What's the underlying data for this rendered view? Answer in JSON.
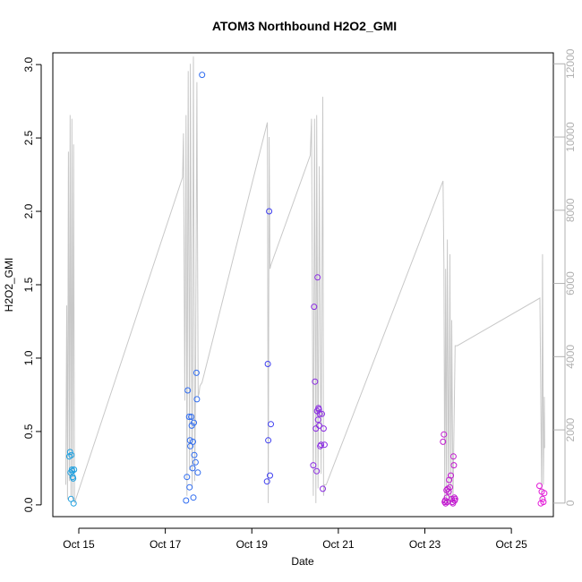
{
  "chart_data": {
    "type": "scatter",
    "title": "ATOM3 Northbound H2O2_GMI",
    "xlabel": "Date",
    "ylabel": "H2O2_GMI",
    "xlim": [
      14.4,
      25.97
    ],
    "ylim": [
      -0.08,
      3.08
    ],
    "y2lim": [
      -370,
      12300
    ],
    "x_ticks": [
      {
        "value": 15,
        "label": "Oct 15"
      },
      {
        "value": 17,
        "label": "Oct 17"
      },
      {
        "value": 19,
        "label": "Oct 19"
      },
      {
        "value": 21,
        "label": "Oct 21"
      },
      {
        "value": 23,
        "label": "Oct 23"
      },
      {
        "value": 25,
        "label": "Oct 25"
      }
    ],
    "y_ticks": [
      "0.0",
      "0.5",
      "1.0",
      "1.5",
      "2.0",
      "2.5",
      "3.0"
    ],
    "y2_ticks": [
      "0",
      "2000",
      "4000",
      "6000",
      "8000",
      "10000",
      "12000"
    ],
    "grid": false,
    "colors": {
      "axis": "#000000",
      "secondary_axis": "#b0b0b0",
      "altitude_line": "#c8c8c8"
    },
    "series": [
      {
        "marker": "open-circle",
        "color": "#1fa0e0",
        "x": [
          14.78,
          14.8,
          14.81,
          14.82,
          14.83,
          14.84,
          14.85,
          14.86,
          14.87,
          14.88,
          14.89
        ],
        "y": [
          0.33,
          0.36,
          0.22,
          0.04,
          0.34,
          0.24,
          0.23,
          0.19,
          0.18,
          0.01,
          0.24
        ]
      },
      {
        "marker": "open-circle",
        "color": "#2f6cf0",
        "x": [
          17.48,
          17.5,
          17.52,
          17.55,
          17.56,
          17.57,
          17.58,
          17.6,
          17.61,
          17.63,
          17.64,
          17.65,
          17.66,
          17.67,
          17.7,
          17.72,
          17.73,
          17.75,
          17.85
        ],
        "y": [
          0.03,
          0.19,
          0.78,
          0.6,
          0.12,
          0.44,
          0.4,
          0.6,
          0.54,
          0.25,
          0.43,
          0.05,
          0.56,
          0.34,
          0.29,
          0.9,
          0.72,
          0.22,
          2.93
        ]
      },
      {
        "marker": "open-circle",
        "color": "#3f3ff0",
        "x": [
          19.35,
          19.37,
          19.38,
          19.4,
          19.42,
          19.44
        ],
        "y": [
          0.16,
          0.96,
          0.44,
          2.0,
          0.2,
          0.55
        ]
      },
      {
        "marker": "open-circle",
        "color": "#8a2be2",
        "x": [
          20.42,
          20.44,
          20.46,
          20.48,
          20.5,
          20.51,
          20.52,
          20.53,
          20.54,
          20.55,
          20.56,
          20.57,
          20.58,
          20.6,
          20.62,
          20.64,
          20.66,
          20.68
        ],
        "y": [
          0.27,
          1.35,
          0.84,
          0.52,
          0.23,
          0.64,
          1.55,
          0.58,
          0.66,
          0.65,
          0.54,
          0.62,
          0.4,
          0.41,
          0.62,
          0.11,
          0.52,
          0.41
        ]
      },
      {
        "marker": "open-circle",
        "color": "#c21ad0",
        "x": [
          23.42,
          23.44,
          23.46,
          23.47,
          23.48,
          23.5,
          23.51,
          23.52,
          23.53,
          23.55,
          23.56,
          23.58,
          23.6,
          23.62,
          23.64,
          23.65,
          23.66,
          23.67,
          23.68,
          23.69,
          23.7
        ],
        "y": [
          0.43,
          0.48,
          0.02,
          0.03,
          0.01,
          0.1,
          0.05,
          0.02,
          0.11,
          0.09,
          0.17,
          0.12,
          0.2,
          0.04,
          0.02,
          0.01,
          0.33,
          0.27,
          0.05,
          0.03,
          0.04
        ]
      },
      {
        "marker": "open-circle",
        "color": "#e31ad8",
        "x": [
          25.65,
          25.68,
          25.7,
          25.72,
          25.74,
          25.76
        ],
        "y": [
          0.13,
          0.01,
          0.09,
          0.04,
          0.02,
          0.08
        ]
      }
    ],
    "altitude_line": {
      "axis": "right",
      "color": "#c8c8c8",
      "x": [
        14.7,
        14.72,
        14.74,
        14.76,
        14.78,
        14.8,
        14.82,
        14.84,
        14.86,
        14.88,
        14.9,
        17.4,
        17.42,
        17.45,
        17.48,
        17.5,
        17.53,
        17.56,
        17.58,
        17.62,
        17.65,
        17.68,
        17.7,
        17.73,
        17.76,
        17.78,
        17.8,
        17.85,
        19.36,
        19.38,
        19.4,
        19.42,
        19.44,
        20.35,
        20.38,
        20.42,
        20.45,
        20.48,
        20.5,
        20.53,
        20.56,
        20.6,
        20.64,
        20.66,
        20.68,
        20.72,
        23.42,
        23.44,
        23.46,
        23.48,
        23.5,
        23.52,
        23.55,
        23.58,
        23.6,
        23.62,
        23.65,
        23.7,
        23.75,
        25.66,
        25.7,
        25.72,
        25.74,
        25.76,
        25.77
      ],
      "y": [
        500,
        5400,
        100,
        9600,
        600,
        10600,
        200,
        10500,
        100,
        9800,
        0,
        8900,
        10100,
        2800,
        10600,
        200,
        11800,
        900,
        12000,
        400,
        12200,
        600,
        3200,
        11500,
        2900,
        3000,
        3200,
        3300,
        10400,
        0,
        10000,
        6400,
        6500,
        9500,
        10500,
        200,
        10500,
        0,
        10600,
        400,
        9200,
        800,
        11100,
        200,
        500,
        500,
        8800,
        6500,
        0,
        6400,
        0,
        7200,
        0,
        6800,
        0,
        5000,
        0,
        4300,
        4300,
        5600,
        100,
        6800,
        500,
        2900,
        1500
      ]
    }
  }
}
